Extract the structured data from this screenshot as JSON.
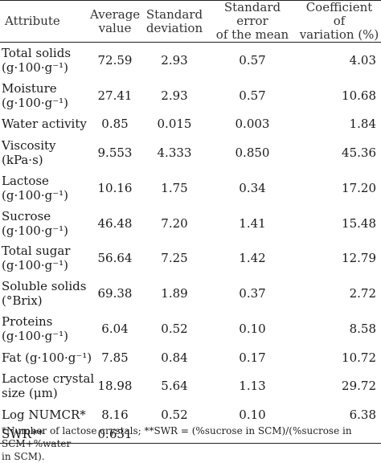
{
  "header": {
    "attribute": "Attribute",
    "average_l1": "Average",
    "average_l2": "value",
    "sd_l1": "Standard",
    "sd_l2": "deviation",
    "sem_l1": "Standard error",
    "sem_l2": "of the mean",
    "cv_l1": "Coefficient of",
    "cv_l2": "variation (%)"
  },
  "rows": [
    {
      "l1": "Total solids",
      "l2": "(g·100·g⁻¹)",
      "avg": "72.59",
      "sd": "2.93",
      "sem": "0.57",
      "cv": "4.03"
    },
    {
      "l1": "Moisture",
      "l2": "(g·100·g⁻¹)",
      "avg": "27.41",
      "sd": "2.93",
      "sem": "0.57",
      "cv": "10.68"
    },
    {
      "l1": "Water activity",
      "l2": "",
      "avg": "0.85",
      "sd": "0.015",
      "sem": "0.003",
      "cv": "1.84"
    },
    {
      "l1": "Viscosity",
      "l2": "(kPa·s)",
      "avg": "9.553",
      "sd": "4.333",
      "sem": "0.850",
      "cv": "45.36"
    },
    {
      "l1": "Lactose",
      "l2": "(g·100·g⁻¹)",
      "avg": "10.16",
      "sd": "1.75",
      "sem": "0.34",
      "cv": "17.20"
    },
    {
      "l1": "Sucrose",
      "l2": "(g·100·g⁻¹)",
      "avg": "46.48",
      "sd": "7.20",
      "sem": "1.41",
      "cv": "15.48"
    },
    {
      "l1": "Total sugar",
      "l2": "(g·100·g⁻¹)",
      "avg": "56.64",
      "sd": "7.25",
      "sem": "1.42",
      "cv": "12.79"
    },
    {
      "l1": "Soluble solids",
      "l2": "(°Brix)",
      "avg": "69.38",
      "sd": "1.89",
      "sem": "0.37",
      "cv": "2.72"
    },
    {
      "l1": "Proteins",
      "l2": "(g·100·g⁻¹)",
      "avg": "6.04",
      "sd": "0.52",
      "sem": "0.10",
      "cv": "8.58"
    },
    {
      "l1": "Fat (g·100·g⁻¹)",
      "l2": "",
      "avg": "7.85",
      "sd": "0.84",
      "sem": "0.17",
      "cv": "10.72"
    },
    {
      "l1": "Lactose crystal",
      "l2": "size (μm)",
      "avg": "18.98",
      "sd": "5.64",
      "sem": "1.13",
      "cv": "29.72"
    },
    {
      "l1": "Log NUMCR*",
      "l2": "",
      "avg": "8.16",
      "sd": "0.52",
      "sem": "0.10",
      "cv": "6.38"
    },
    {
      "l1": "SWR**",
      "l2": "",
      "avg": "0.631",
      "sd": "",
      "sem": "",
      "cv": ""
    }
  ],
  "footnote_l1": "*Number of lactose crystals; **SWR = (%sucrose in SCM)/(%sucrose in SCM+%water",
  "footnote_l2": "in SCM)."
}
